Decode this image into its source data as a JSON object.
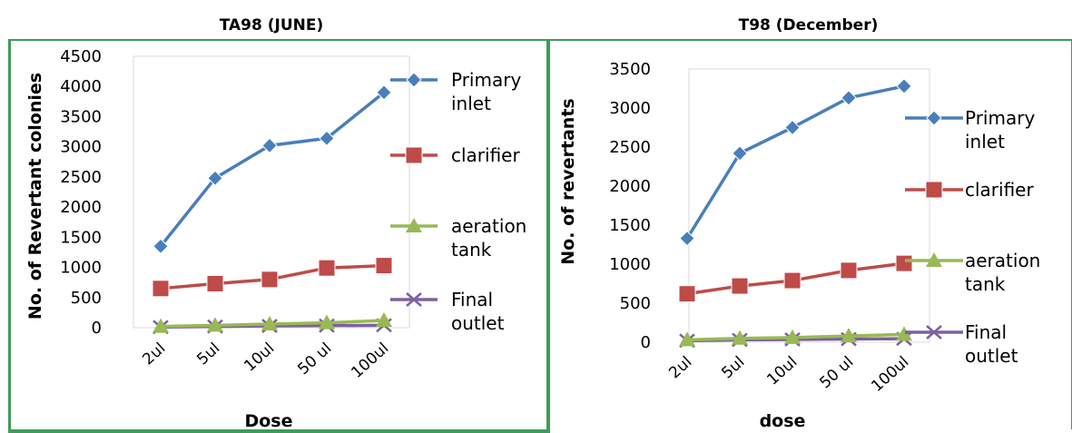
{
  "chart_data": [
    {
      "type": "line",
      "title": "TA98 (JUNE)",
      "xlabel": "Dose",
      "ylabel": "No. of Revertant colonies",
      "categories": [
        "2ul",
        "5ul",
        "10ul",
        "50 ul",
        "100ul"
      ],
      "ylim": [
        0,
        4500
      ],
      "yticks": [
        "0",
        "500",
        "1000",
        "1500",
        "2000",
        "2500",
        "3000",
        "3500",
        "4000",
        "4500"
      ],
      "grid": false,
      "legend_position": "right",
      "series": [
        {
          "name": "Primary inlet",
          "values": [
            1350,
            2480,
            3020,
            3140,
            3900
          ],
          "color": "#4a7ebb",
          "marker": "diamond"
        },
        {
          "name": "clarifier",
          "values": [
            650,
            730,
            800,
            990,
            1030
          ],
          "color": "#be4b48",
          "marker": "square"
        },
        {
          "name": "aeration tank",
          "values": [
            20,
            40,
            60,
            80,
            120
          ],
          "color": "#98b954",
          "marker": "triangle"
        },
        {
          "name": "Final outlet",
          "values": [
            10,
            20,
            30,
            35,
            40
          ],
          "color": "#7d60a0",
          "marker": "x"
        }
      ]
    },
    {
      "type": "line",
      "title": "T98 (December)",
      "xlabel": "dose",
      "ylabel": "No. of revertants",
      "categories": [
        "2ul",
        "5ul",
        "10ul",
        "50 ul",
        "100ul"
      ],
      "ylim": [
        0,
        3500
      ],
      "yticks": [
        "0",
        "500",
        "1000",
        "1500",
        "2000",
        "2500",
        "3000",
        "3500"
      ],
      "grid": false,
      "legend_position": "right",
      "series": [
        {
          "name": "Primary inlet",
          "values": [
            1330,
            2420,
            2750,
            3130,
            3280
          ],
          "color": "#4a7ebb",
          "marker": "diamond"
        },
        {
          "name": "clarifier",
          "values": [
            620,
            720,
            790,
            920,
            1010
          ],
          "color": "#be4b48",
          "marker": "square"
        },
        {
          "name": "aeration tank",
          "values": [
            30,
            50,
            60,
            80,
            100
          ],
          "color": "#98b954",
          "marker": "triangle"
        },
        {
          "name": "Final outlet",
          "values": [
            20,
            30,
            35,
            40,
            45
          ],
          "color": "#7d60a0",
          "marker": "x"
        }
      ]
    }
  ]
}
